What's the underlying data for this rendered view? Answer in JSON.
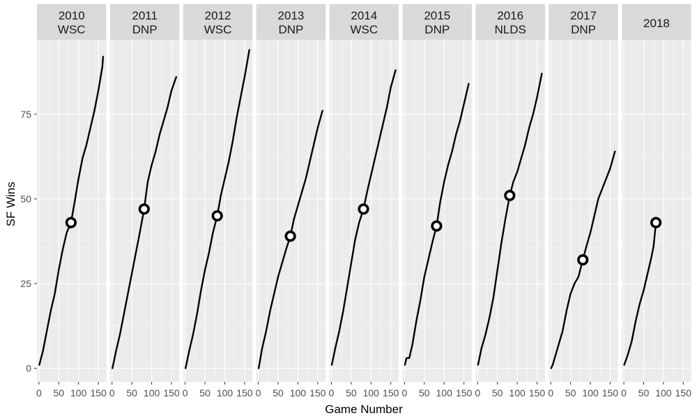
{
  "chart_data": {
    "type": "line",
    "facet_by": "season",
    "x_label": "Game Number",
    "y_label": "SF Wins",
    "x_ticks": [
      "0",
      "50",
      "100",
      "150"
    ],
    "y_ticks": [
      "0",
      "25",
      "50",
      "75"
    ],
    "xlim": [
      -5,
      170
    ],
    "ylim": [
      -4,
      97
    ],
    "grid": true,
    "colors": {
      "panel_bg": "#ebebeb",
      "strip_bg": "#d9d9d9",
      "grid_major": "#ffffff",
      "line": "#000000",
      "marker_fill": "#ffffff",
      "marker_stroke": "#000000"
    },
    "facets": [
      {
        "year": "2010",
        "result": "WSC",
        "wins": [
          [
            1,
            1
          ],
          [
            10,
            5
          ],
          [
            20,
            11
          ],
          [
            30,
            17
          ],
          [
            40,
            22
          ],
          [
            50,
            29
          ],
          [
            60,
            35
          ],
          [
            70,
            40
          ],
          [
            81,
            43
          ],
          [
            90,
            49
          ],
          [
            100,
            56
          ],
          [
            110,
            62
          ],
          [
            120,
            66
          ],
          [
            130,
            71
          ],
          [
            140,
            76
          ],
          [
            150,
            82
          ],
          [
            160,
            89
          ],
          [
            162,
            92
          ]
        ],
        "marker": [
          81,
          43
        ]
      },
      {
        "year": "2011",
        "result": "DNP",
        "wins": [
          [
            1,
            0
          ],
          [
            10,
            5
          ],
          [
            20,
            10
          ],
          [
            30,
            16
          ],
          [
            40,
            22
          ],
          [
            50,
            28
          ],
          [
            60,
            34
          ],
          [
            70,
            40
          ],
          [
            81,
            47
          ],
          [
            90,
            55
          ],
          [
            100,
            60
          ],
          [
            110,
            64
          ],
          [
            120,
            69
          ],
          [
            130,
            73
          ],
          [
            140,
            77
          ],
          [
            150,
            82
          ],
          [
            162,
            86
          ]
        ],
        "marker": [
          81,
          47
        ]
      },
      {
        "year": "2012",
        "result": "WSC",
        "wins": [
          [
            1,
            0
          ],
          [
            10,
            5
          ],
          [
            20,
            10
          ],
          [
            30,
            16
          ],
          [
            40,
            23
          ],
          [
            50,
            29
          ],
          [
            60,
            34
          ],
          [
            70,
            40
          ],
          [
            81,
            45
          ],
          [
            90,
            51
          ],
          [
            100,
            56
          ],
          [
            110,
            61
          ],
          [
            120,
            67
          ],
          [
            130,
            74
          ],
          [
            140,
            80
          ],
          [
            150,
            86
          ],
          [
            162,
            94
          ]
        ],
        "marker": [
          81,
          45
        ]
      },
      {
        "year": "2013",
        "result": "DNP",
        "wins": [
          [
            1,
            0
          ],
          [
            10,
            6
          ],
          [
            20,
            11
          ],
          [
            30,
            17
          ],
          [
            40,
            22
          ],
          [
            50,
            27
          ],
          [
            60,
            31
          ],
          [
            70,
            35
          ],
          [
            81,
            39
          ],
          [
            90,
            44
          ],
          [
            100,
            48
          ],
          [
            110,
            52
          ],
          [
            120,
            56
          ],
          [
            130,
            61
          ],
          [
            140,
            66
          ],
          [
            150,
            71
          ],
          [
            162,
            76
          ]
        ],
        "marker": [
          81,
          39
        ]
      },
      {
        "year": "2014",
        "result": "WSC",
        "wins": [
          [
            1,
            1
          ],
          [
            10,
            6
          ],
          [
            20,
            11
          ],
          [
            30,
            17
          ],
          [
            40,
            24
          ],
          [
            50,
            31
          ],
          [
            60,
            38
          ],
          [
            70,
            43
          ],
          [
            81,
            47
          ],
          [
            90,
            52
          ],
          [
            100,
            57
          ],
          [
            110,
            62
          ],
          [
            120,
            67
          ],
          [
            130,
            72
          ],
          [
            140,
            77
          ],
          [
            150,
            83
          ],
          [
            162,
            88
          ]
        ],
        "marker": [
          81,
          47
        ]
      },
      {
        "year": "2015",
        "result": "DNP",
        "wins": [
          [
            1,
            1
          ],
          [
            5,
            3
          ],
          [
            12,
            3
          ],
          [
            20,
            7
          ],
          [
            30,
            14
          ],
          [
            40,
            20
          ],
          [
            50,
            27
          ],
          [
            60,
            32
          ],
          [
            70,
            37
          ],
          [
            81,
            42
          ],
          [
            90,
            49
          ],
          [
            100,
            55
          ],
          [
            110,
            60
          ],
          [
            120,
            64
          ],
          [
            130,
            69
          ],
          [
            140,
            73
          ],
          [
            150,
            78
          ],
          [
            162,
            84
          ]
        ],
        "marker": [
          81,
          42
        ]
      },
      {
        "year": "2016",
        "result": "NLDS",
        "wins": [
          [
            1,
            1
          ],
          [
            10,
            6
          ],
          [
            20,
            10
          ],
          [
            30,
            15
          ],
          [
            40,
            21
          ],
          [
            50,
            29
          ],
          [
            60,
            37
          ],
          [
            70,
            44
          ],
          [
            81,
            51
          ],
          [
            90,
            55
          ],
          [
            100,
            58
          ],
          [
            110,
            62
          ],
          [
            120,
            66
          ],
          [
            130,
            71
          ],
          [
            140,
            75
          ],
          [
            150,
            80
          ],
          [
            162,
            87
          ]
        ],
        "marker": [
          81,
          51
        ]
      },
      {
        "year": "2017",
        "result": "DNP",
        "wins": [
          [
            1,
            0
          ],
          [
            5,
            1
          ],
          [
            10,
            3
          ],
          [
            20,
            7
          ],
          [
            30,
            11
          ],
          [
            40,
            17
          ],
          [
            50,
            22
          ],
          [
            60,
            25
          ],
          [
            70,
            27
          ],
          [
            81,
            32
          ],
          [
            90,
            36
          ],
          [
            100,
            40
          ],
          [
            110,
            45
          ],
          [
            120,
            50
          ],
          [
            130,
            53
          ],
          [
            140,
            56
          ],
          [
            150,
            59
          ],
          [
            162,
            64
          ]
        ],
        "marker": [
          81,
          32
        ]
      },
      {
        "year": "2018",
        "result": "",
        "wins": [
          [
            1,
            1
          ],
          [
            10,
            4
          ],
          [
            20,
            8
          ],
          [
            30,
            14
          ],
          [
            40,
            19
          ],
          [
            50,
            23
          ],
          [
            60,
            28
          ],
          [
            70,
            33
          ],
          [
            75,
            36
          ],
          [
            81,
            43
          ]
        ],
        "marker": [
          81,
          43
        ]
      }
    ]
  }
}
